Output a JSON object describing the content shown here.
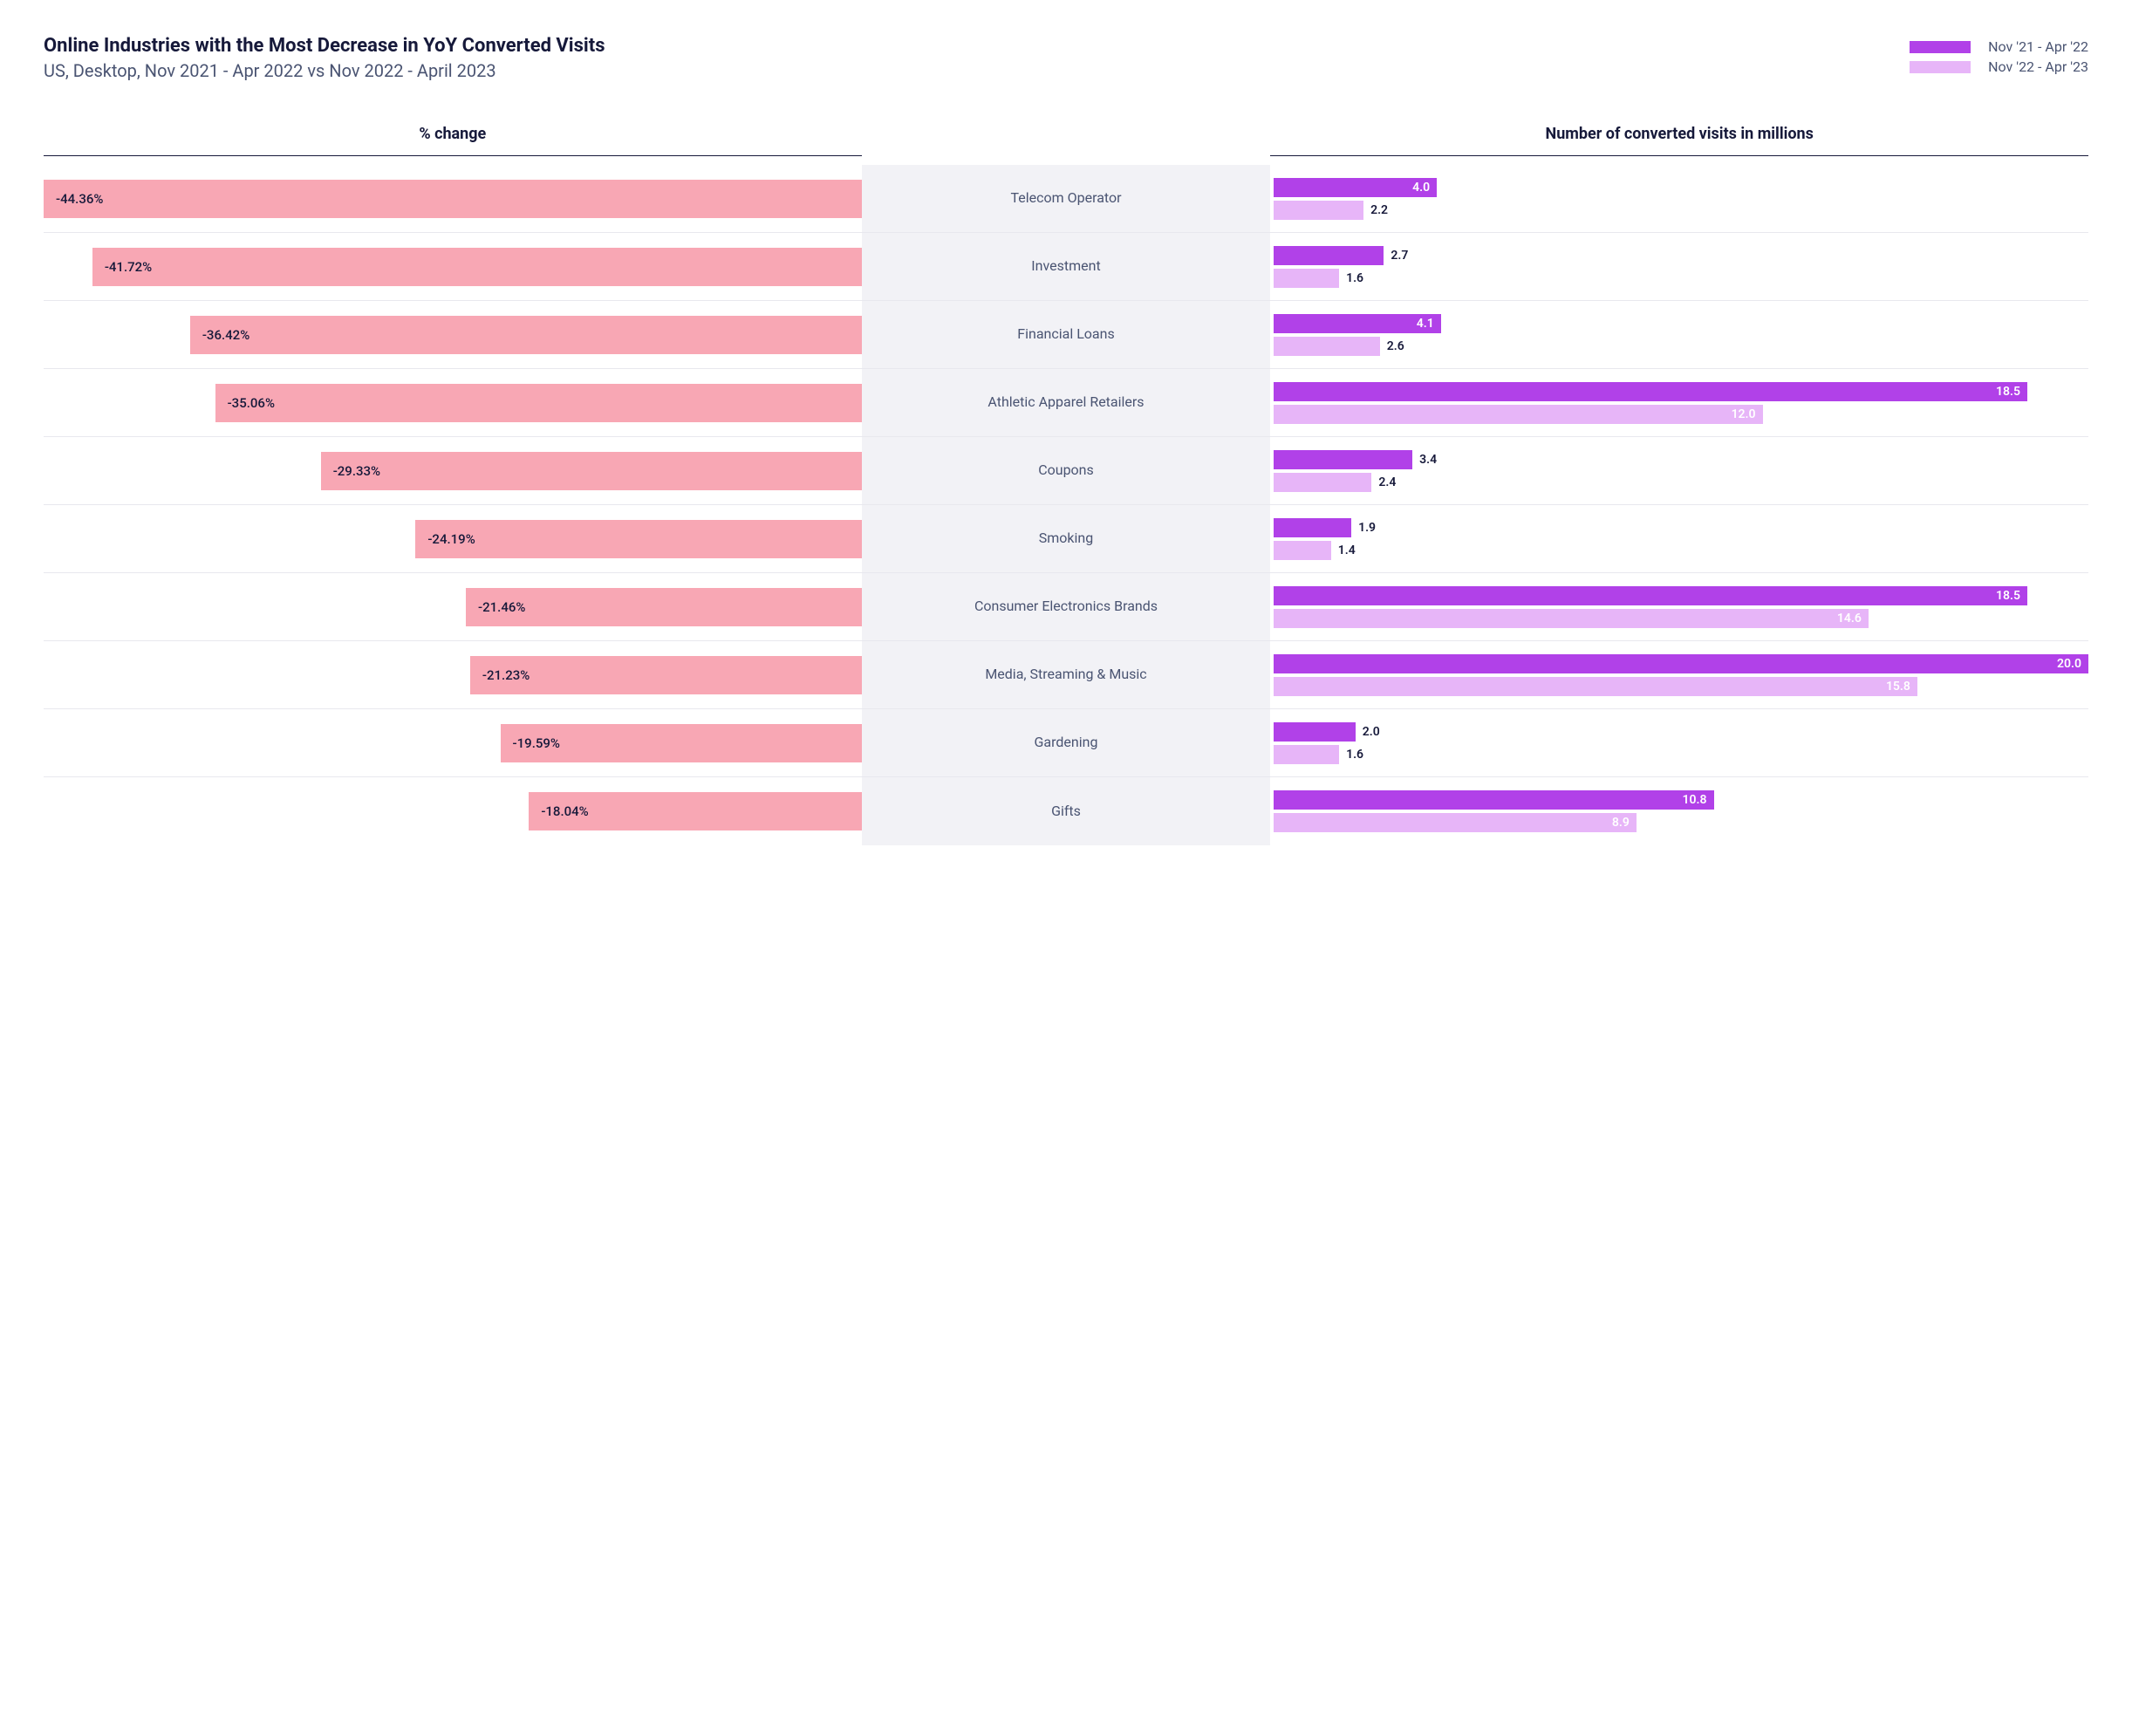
{
  "title": "Online Industries with the Most Decrease in YoY Converted Visits",
  "subtitle": "US, Desktop, Nov 2021 - Apr 2022 vs Nov 2022 - April 2023",
  "legend": {
    "series1": {
      "label": "Nov '21 - Apr '22",
      "color": "#b141e8"
    },
    "series2": {
      "label": "Nov '22 - Apr '23",
      "color": "#e7b5f8"
    }
  },
  "columns": {
    "left": "% change",
    "right": "Number of converted visits in millions"
  },
  "styling": {
    "pct_bar_color": "#f8a7b4",
    "pct_text_color": "#16193a",
    "series1_color": "#b141e8",
    "series2_color": "#e7b5f8",
    "mid_bg": "#f2f2f6",
    "title_color": "#16193a",
    "subtitle_color": "#4a5472",
    "divider_color": "#e8e8ee",
    "pct_axis_max_abs": 44.36,
    "visits_axis_max": 20.0,
    "title_fontsize": 22,
    "subtitle_fontsize": 20,
    "heading_fontsize": 18,
    "category_fontsize": 16,
    "value_fontsize": 14
  },
  "rows": [
    {
      "category": "Telecom Operator",
      "pct": -44.36,
      "pct_label": "-44.36%",
      "v1": 4.0,
      "v1_label": "4.0",
      "v2": 2.2,
      "v2_label": "2.2"
    },
    {
      "category": "Investment",
      "pct": -41.72,
      "pct_label": "-41.72%",
      "v1": 2.7,
      "v1_label": "2.7",
      "v2": 1.6,
      "v2_label": "1.6"
    },
    {
      "category": "Financial Loans",
      "pct": -36.42,
      "pct_label": "-36.42%",
      "v1": 4.1,
      "v1_label": "4.1",
      "v2": 2.6,
      "v2_label": "2.6"
    },
    {
      "category": "Athletic Apparel Retailers",
      "pct": -35.06,
      "pct_label": "-35.06%",
      "v1": 18.5,
      "v1_label": "18.5",
      "v2": 12.0,
      "v2_label": "12.0"
    },
    {
      "category": "Coupons",
      "pct": -29.33,
      "pct_label": "-29.33%",
      "v1": 3.4,
      "v1_label": "3.4",
      "v2": 2.4,
      "v2_label": "2.4"
    },
    {
      "category": "Smoking",
      "pct": -24.19,
      "pct_label": "-24.19%",
      "v1": 1.9,
      "v1_label": "1.9",
      "v2": 1.4,
      "v2_label": "1.4"
    },
    {
      "category": "Consumer Electronics Brands",
      "pct": -21.46,
      "pct_label": "-21.46%",
      "v1": 18.5,
      "v1_label": "18.5",
      "v2": 14.6,
      "v2_label": "14.6"
    },
    {
      "category": "Media, Streaming & Music",
      "pct": -21.23,
      "pct_label": "-21.23%",
      "v1": 20.0,
      "v1_label": "20.0",
      "v2": 15.8,
      "v2_label": "15.8"
    },
    {
      "category": "Gardening",
      "pct": -19.59,
      "pct_label": "-19.59%",
      "v1": 2.0,
      "v1_label": "2.0",
      "v2": 1.6,
      "v2_label": "1.6"
    },
    {
      "category": "Gifts",
      "pct": -18.04,
      "pct_label": "-18.04%",
      "v1": 10.8,
      "v1_label": "10.8",
      "v2": 8.9,
      "v2_label": "8.9"
    }
  ]
}
